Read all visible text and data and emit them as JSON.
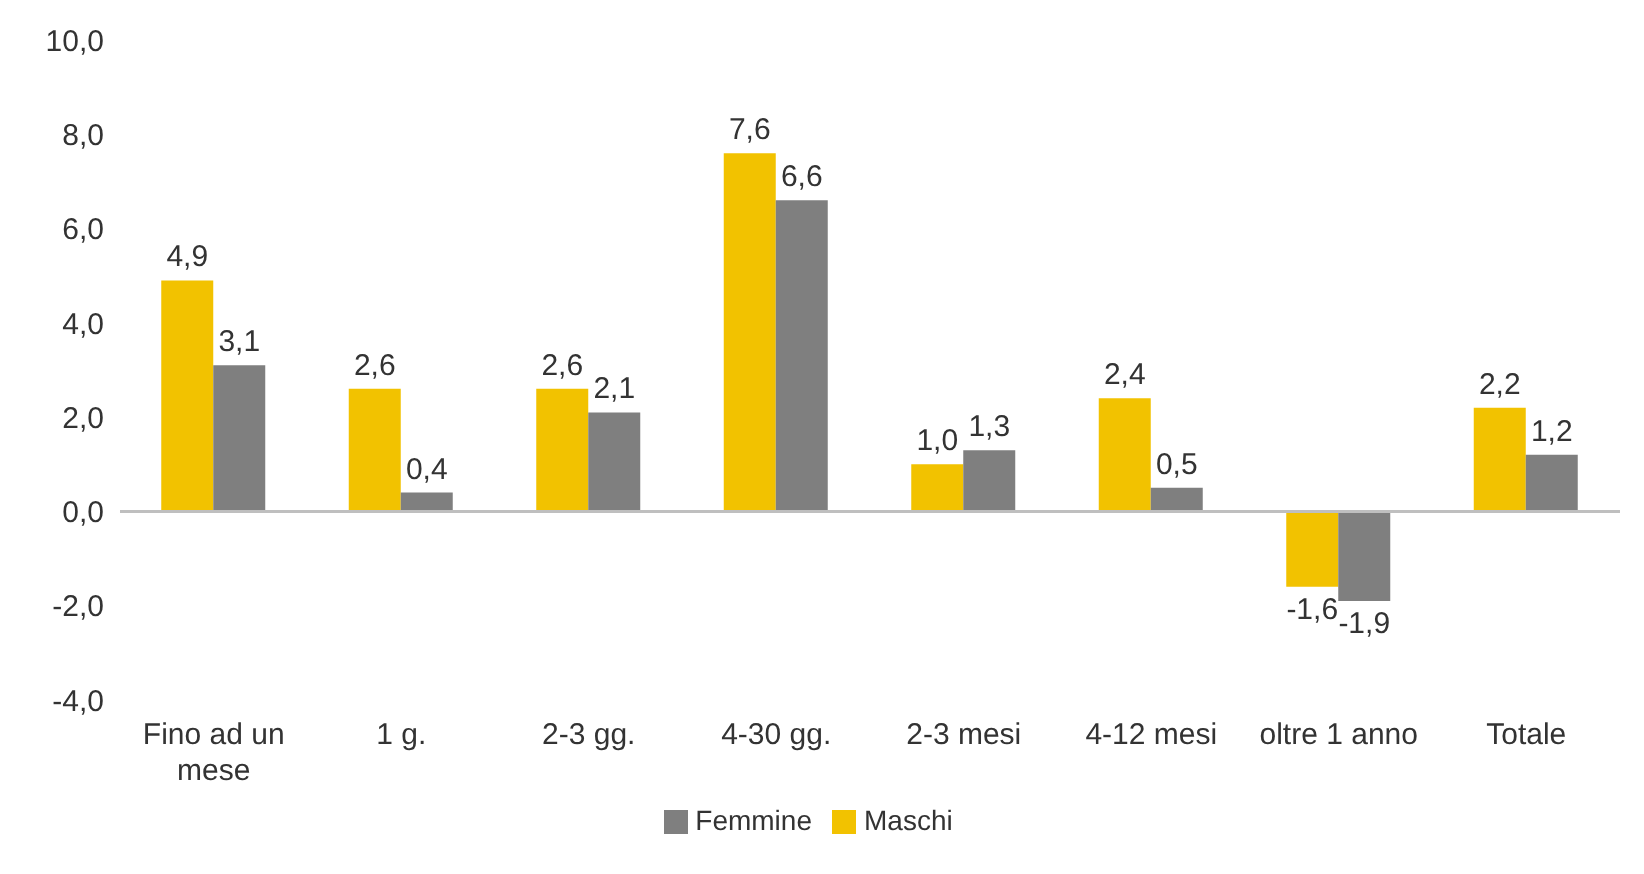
{
  "chart_data": {
    "type": "bar",
    "categories": [
      "Fino ad un mese",
      "1 g.",
      "2-3 gg.",
      "4-30 gg.",
      "2-3 mesi",
      "4-12 mesi",
      "oltre 1 anno",
      "Totale"
    ],
    "series": [
      {
        "name": "Maschi",
        "color": "#f2c200",
        "values": [
          4.9,
          2.6,
          2.6,
          7.6,
          1.0,
          2.4,
          -1.6,
          2.2
        ],
        "value_labels": [
          "4,9",
          "2,6",
          "2,6",
          "7,6",
          "1,0",
          "2,4",
          "-1,6",
          "2,2"
        ]
      },
      {
        "name": "Femmine",
        "color": "#7f7f7f",
        "values": [
          3.1,
          0.4,
          2.1,
          6.6,
          1.3,
          0.5,
          -1.9,
          1.2
        ],
        "value_labels": [
          "3,1",
          "0,4",
          "2,1",
          "6,6",
          "1,3",
          "0,5",
          "-1,9",
          "1,2"
        ]
      }
    ],
    "ylim": [
      -4,
      10
    ],
    "yticks": [
      {
        "value": -4,
        "label": "-4,0"
      },
      {
        "value": -2,
        "label": "-2,0"
      },
      {
        "value": 0,
        "label": "0,0"
      },
      {
        "value": 2,
        "label": "2,0"
      },
      {
        "value": 4,
        "label": "4,0"
      },
      {
        "value": 6,
        "label": "6,0"
      },
      {
        "value": 8,
        "label": "8,0"
      },
      {
        "value": 10,
        "label": "10,0"
      }
    ],
    "legend": "bottom"
  }
}
